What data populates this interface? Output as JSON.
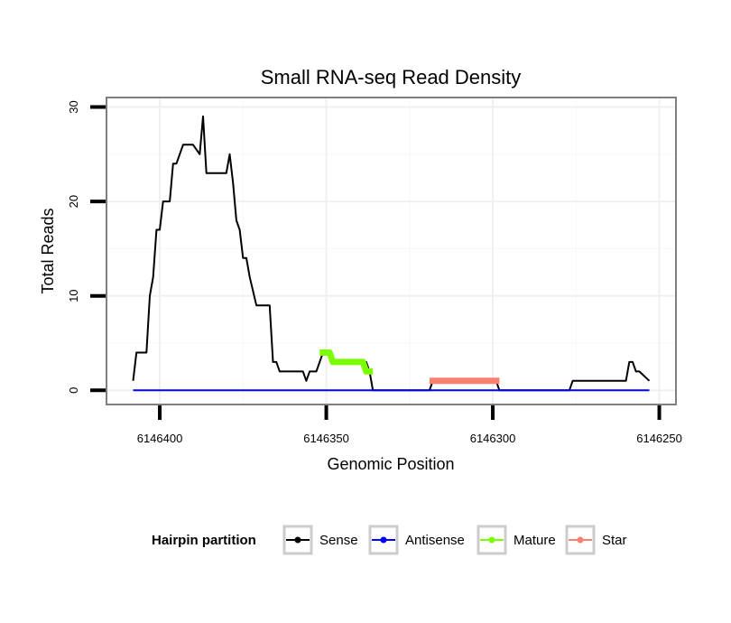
{
  "chart_data": {
    "type": "line",
    "title": "Small RNA-seq Read Density",
    "xlabel": "Genomic Position",
    "ylabel": "Total Reads",
    "x_reversed": true,
    "xlim": [
      6146416,
      6146245
    ],
    "ylim": [
      -1.5,
      31
    ],
    "x_ticks": [
      6146400,
      6146350,
      6146300,
      6146250
    ],
    "x_tick_labels": [
      "6146400",
      "6146350",
      "6146300",
      "6146250"
    ],
    "y_ticks": [
      0,
      10,
      20,
      30
    ],
    "y_tick_labels": [
      "0",
      "10",
      "20",
      "30"
    ],
    "grid": true,
    "legend": {
      "title": "Hairpin partition",
      "position": "bottom",
      "entries": [
        {
          "name": "Sense",
          "color": "#000000"
        },
        {
          "name": "Antisense",
          "color": "#0000ff"
        },
        {
          "name": "Mature",
          "color": "#7cfc00"
        },
        {
          "name": "Star",
          "color": "#fa8072"
        }
      ]
    },
    "series": [
      {
        "name": "Sense",
        "color": "#000000",
        "width": 2,
        "x": [
          6146408,
          6146407,
          6146404,
          6146403,
          6146402,
          6146401,
          6146400,
          6146399,
          6146397,
          6146396,
          6146395,
          6146393,
          6146390,
          6146388,
          6146387,
          6146386,
          6146385,
          6146384,
          6146383,
          6146382,
          6146381,
          6146380,
          6146379,
          6146378,
          6146377,
          6146376,
          6146375,
          6146374,
          6146373,
          6146371,
          6146370,
          6146367,
          6146366,
          6146365,
          6146364,
          6146363,
          6146362,
          6146361,
          6146360,
          6146357,
          6146356,
          6146355,
          6146353,
          6146352,
          6146351,
          6146350,
          6146349,
          6146348,
          6146347,
          6146346,
          6146344,
          6146340,
          6146339,
          6146338,
          6146337,
          6146336,
          6146321,
          6146320,
          6146319,
          6146318,
          6146317,
          6146313,
          6146307,
          6146306,
          6146300,
          6146299,
          6146298,
          6146284,
          6146283,
          6146282,
          6146277,
          6146276,
          6146260,
          6146259,
          6146258,
          6146257,
          6146256,
          6146253
        ],
        "y": [
          1,
          4,
          4,
          10,
          12,
          17,
          17,
          20,
          20,
          24,
          24,
          26,
          26,
          25,
          29,
          23,
          23,
          23,
          23,
          23,
          23,
          23,
          25,
          22,
          18,
          17,
          14,
          14,
          12,
          9,
          9,
          9,
          3,
          3,
          2,
          2,
          2,
          2,
          2,
          2,
          1,
          2,
          2,
          3,
          4,
          4,
          4,
          3,
          3,
          3,
          3,
          3,
          3,
          3,
          2,
          0,
          0,
          0,
          0,
          1,
          1,
          1,
          1,
          1,
          1,
          1,
          0,
          0,
          0,
          0,
          0,
          1,
          1,
          3,
          3,
          2,
          2,
          1
        ]
      },
      {
        "name": "Antisense",
        "color": "#0000ff",
        "width": 2,
        "x": [
          6146408,
          6146253
        ],
        "y": [
          0,
          0
        ]
      },
      {
        "name": "Mature",
        "color": "#7cfc00",
        "width": 7,
        "x": [
          6146352,
          6146349,
          6146348,
          6146347,
          6146346,
          6146345,
          6146344,
          6146343,
          6146342,
          6146341,
          6146340,
          6146339,
          6146338,
          6146337,
          6146336
        ],
        "y": [
          4,
          4,
          3,
          3,
          3,
          3,
          3,
          3,
          3,
          3,
          3,
          3,
          2,
          2,
          2
        ]
      },
      {
        "name": "Star",
        "color": "#fa8072",
        "width": 7,
        "x": [
          6146319,
          6146298
        ],
        "y": [
          1,
          1
        ]
      }
    ]
  }
}
